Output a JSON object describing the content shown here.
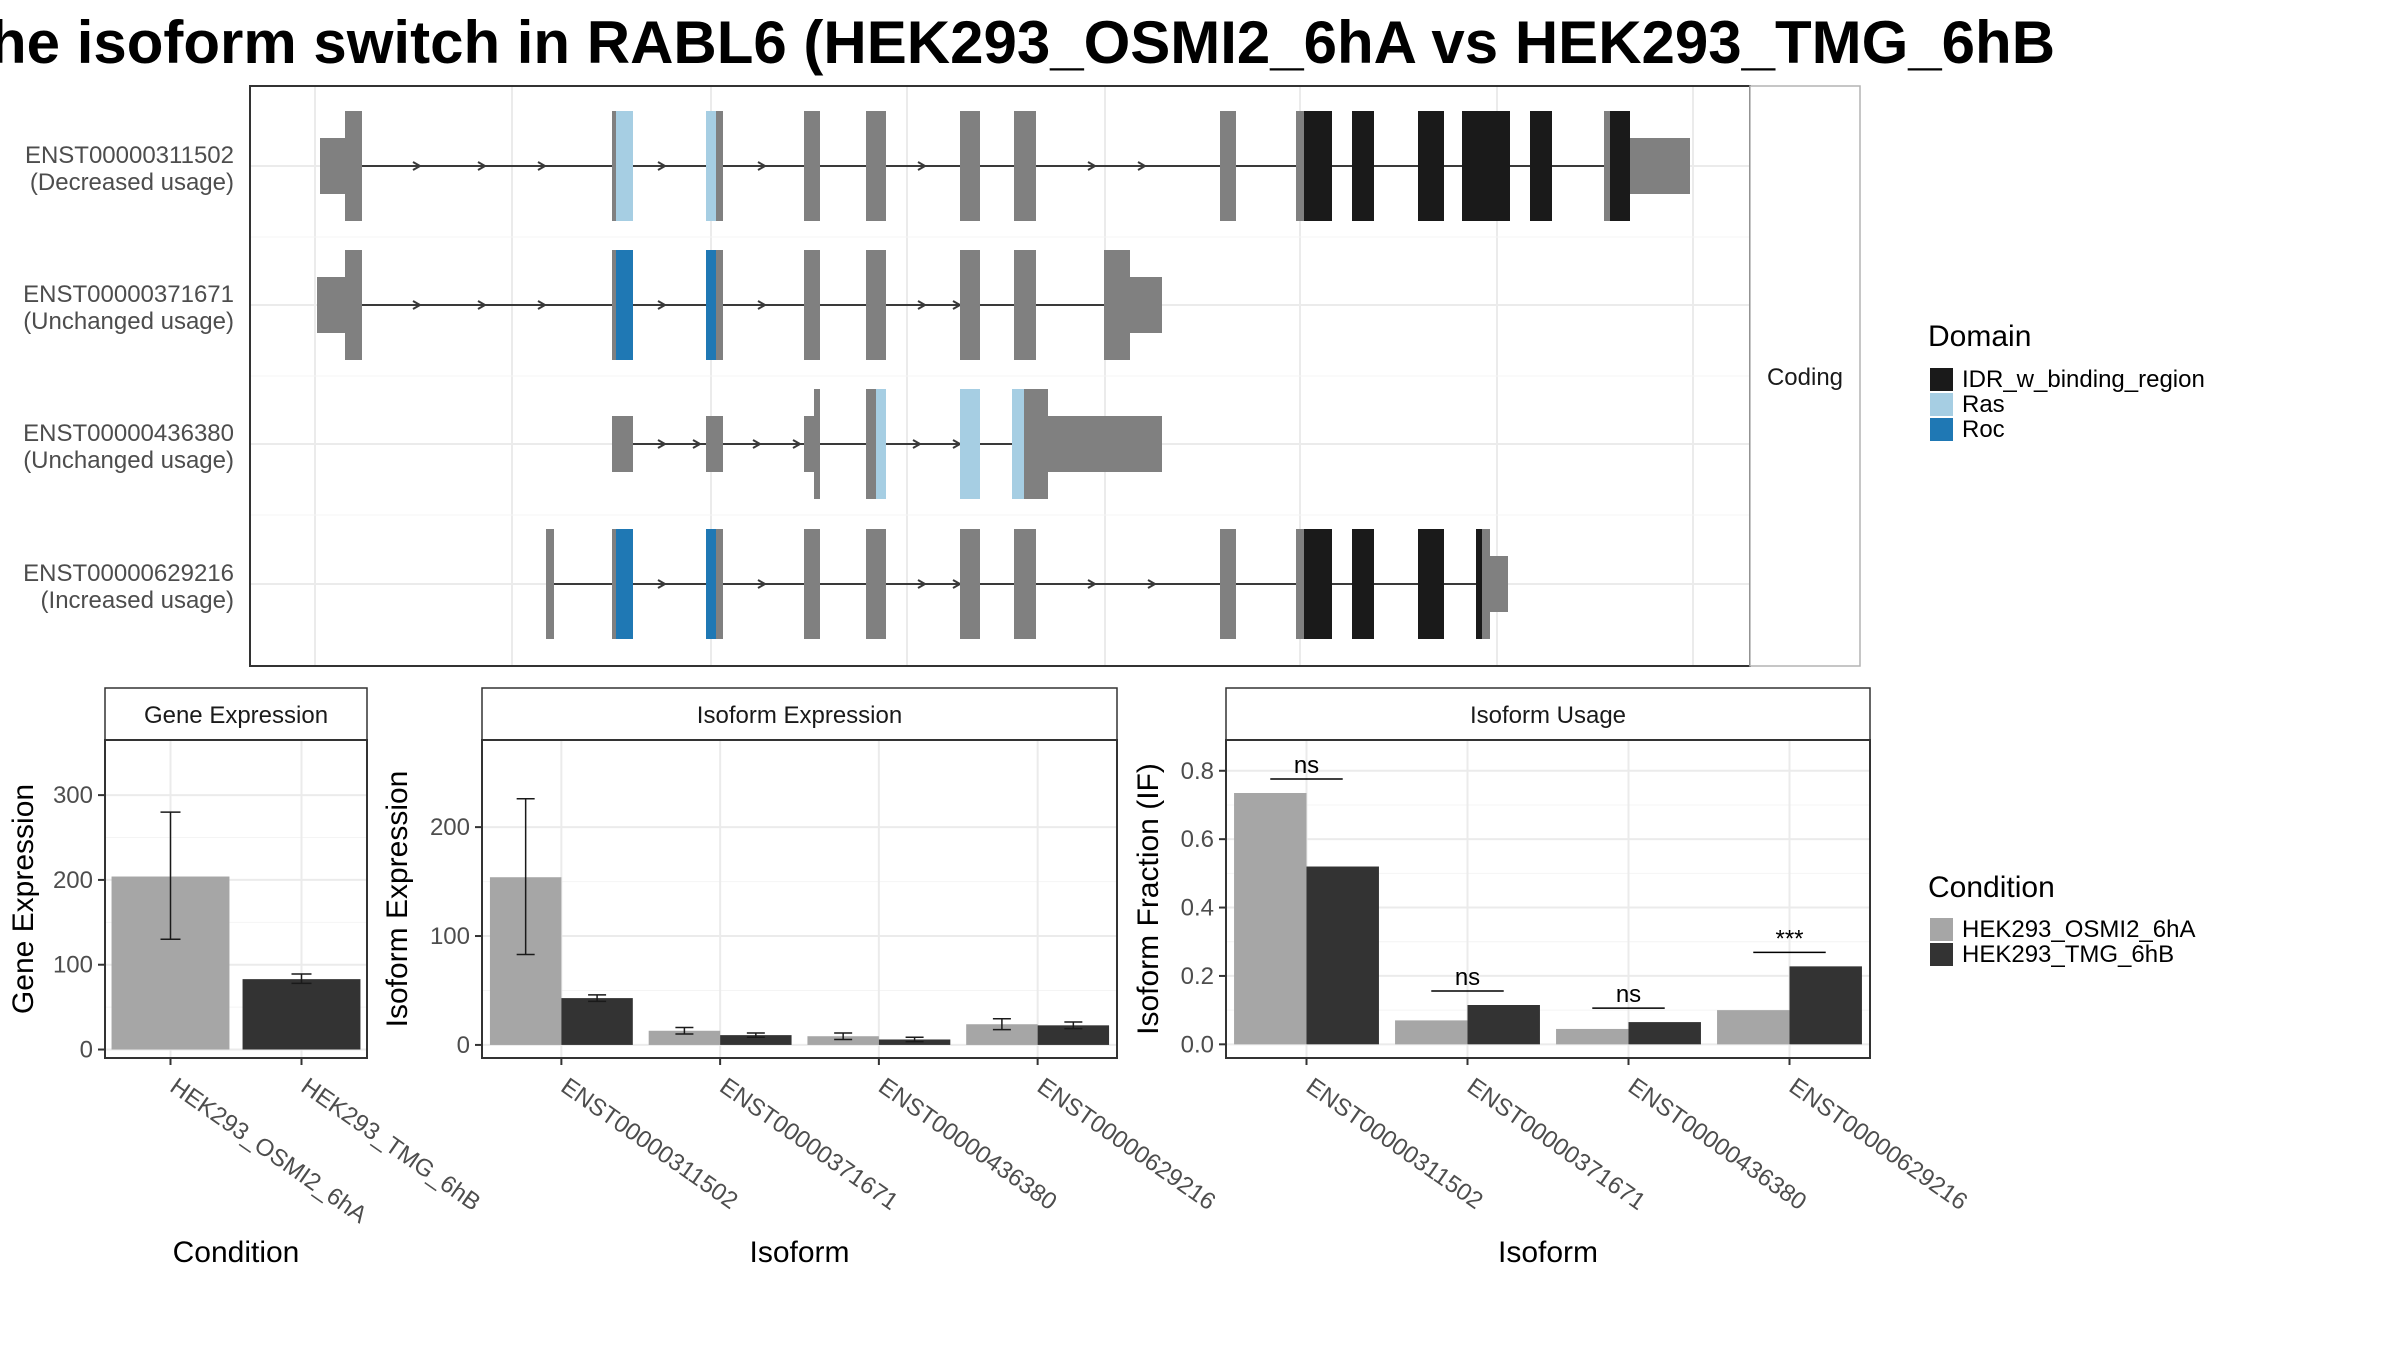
{
  "title": "he isoform switch in RABL6 (HEK293_OSMI2_6hA vs HEK293_TMG_6hB",
  "colors": {
    "intron": "#3f3f3f",
    "exon_noncoding": "#808080",
    "IDR_w_binding_region": "#1a1a1a",
    "Ras": "#a6cee3",
    "Roc": "#1f78b4",
    "cond_A": "#a6a6a6",
    "cond_B": "#333333",
    "strip_bg": "#ffffff",
    "grid": "#ebebeb"
  },
  "structure": {
    "facet_label": "Coding",
    "isoforms": [
      {
        "id": "ENST00000311502",
        "usage": "(Decreased usage)"
      },
      {
        "id": "ENST00000371671",
        "usage": "(Unchanged usage)"
      },
      {
        "id": "ENST00000436380",
        "usage": "(Unchanged usage)"
      },
      {
        "id": "ENST00000629216",
        "usage": "(Increased usage)"
      }
    ]
  },
  "legend_domain": {
    "title": "Domain",
    "items": [
      {
        "label": "IDR_w_binding_region",
        "color": "#1a1a1a"
      },
      {
        "label": "Ras",
        "color": "#a6cee3"
      },
      {
        "label": "Roc",
        "color": "#1f78b4"
      }
    ]
  },
  "legend_condition": {
    "title": "Condition",
    "items": [
      {
        "label": "HEK293_OSMI2_6hA",
        "color": "#a6a6a6"
      },
      {
        "label": "HEK293_TMG_6hB",
        "color": "#333333"
      }
    ]
  },
  "chart_data": [
    {
      "type": "bar",
      "title": "Gene Expression",
      "xlabel": "Condition",
      "ylabel": "Gene Expression",
      "categories": [
        "HEK293_OSMI2_6hA",
        "HEK293_TMG_6hB"
      ],
      "values": [
        204,
        83
      ],
      "error": [
        [
          130,
          280
        ],
        [
          78,
          89
        ]
      ],
      "ylim": [
        -10,
        365
      ],
      "yticks": [
        0,
        100,
        200,
        300
      ],
      "grid": true
    },
    {
      "type": "bar",
      "title": "Isoform Expression",
      "xlabel": "Isoform",
      "ylabel": "Isoform Expression",
      "categories": [
        "ENST00000311502",
        "ENST00000371671",
        "ENST00000436380",
        "ENST00000629216"
      ],
      "series": [
        {
          "name": "HEK293_OSMI2_6hA",
          "values": [
            154,
            13,
            8,
            19
          ],
          "error": [
            [
              83,
              226
            ],
            [
              10,
              16
            ],
            [
              5,
              11
            ],
            [
              14,
              24
            ]
          ]
        },
        {
          "name": "HEK293_TMG_6hB",
          "values": [
            43,
            9,
            5,
            18
          ],
          "error": [
            [
              40,
              46
            ],
            [
              7,
              11
            ],
            [
              3,
              7
            ],
            [
              15,
              21
            ]
          ]
        }
      ],
      "ylim": [
        -12,
        280
      ],
      "yticks": [
        0,
        100,
        200
      ],
      "grid": true
    },
    {
      "type": "bar",
      "title": "Isoform Usage",
      "xlabel": "Isoform",
      "ylabel": "Isoform Fraction (IF)",
      "categories": [
        "ENST00000311502",
        "ENST00000371671",
        "ENST00000436380",
        "ENST00000629216"
      ],
      "series": [
        {
          "name": "HEK293_OSMI2_6hA",
          "values": [
            0.735,
            0.07,
            0.045,
            0.1
          ]
        },
        {
          "name": "HEK293_TMG_6hB",
          "values": [
            0.52,
            0.115,
            0.065,
            0.228
          ]
        }
      ],
      "significance": [
        "ns",
        "ns",
        "ns",
        "***"
      ],
      "ylim": [
        -0.04,
        0.89
      ],
      "yticks": [
        0.0,
        0.2,
        0.4,
        0.6,
        0.8
      ],
      "ytick_labels": [
        "0.0",
        "0.2",
        "0.4",
        "0.6",
        "0.8"
      ],
      "grid": true
    }
  ]
}
